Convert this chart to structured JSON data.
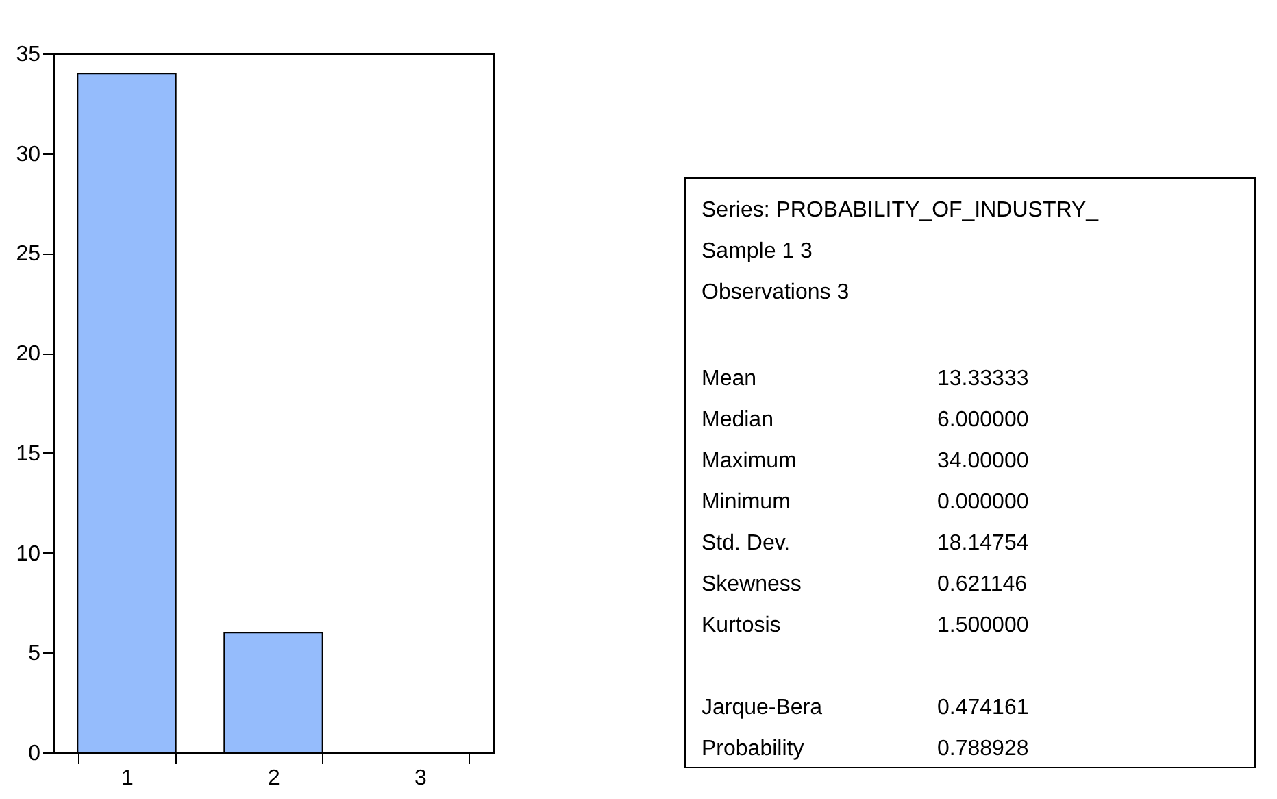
{
  "chart_data": [
    {
      "type": "bar",
      "categories": [
        "1",
        "2",
        "3"
      ],
      "values": [
        34,
        6,
        0
      ],
      "color": "#95bcfc",
      "ylim": [
        0,
        35
      ],
      "yticks": [
        0,
        5,
        10,
        15,
        20,
        25,
        30,
        35
      ],
      "grid": false
    },
    {
      "type": "other",
      "annotations": [
        "Series: PROBABILITY_OF_INDUSTRY_",
        "Sample 1 3",
        "Observations 3",
        "Mean",
        "13.33333",
        "Median",
        "6.000000",
        "Maximum",
        "34.00000",
        "Minimum",
        "0.000000",
        "Std. Dev.",
        "18.14754",
        "Skewness",
        "0.621146",
        "Kurtosis",
        "1.500000",
        "Jarque-Bera",
        "0.474161",
        "Probability",
        "0.788928"
      ]
    }
  ]
}
